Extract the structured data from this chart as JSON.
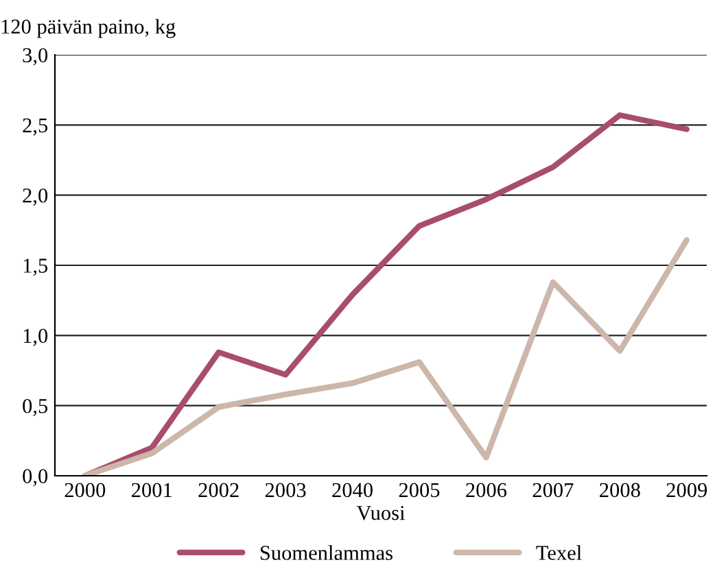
{
  "chart_data": {
    "type": "line",
    "ylabel": "120 päivän paino, kg",
    "xlabel": "Vuosi",
    "categories": [
      "2000",
      "2001",
      "2002",
      "2003",
      "2040",
      "2005",
      "2006",
      "2007",
      "2008",
      "2009"
    ],
    "series": [
      {
        "name": "Suomenlammas",
        "color": "#a84d6a",
        "values": [
          0,
          0.2,
          0.88,
          0.72,
          1.29,
          1.78,
          1.97,
          2.2,
          2.57,
          2.47
        ]
      },
      {
        "name": "Texel",
        "color": "#cdb6aa",
        "values": [
          0,
          0.16,
          0.49,
          0.58,
          0.66,
          0.81,
          0.13,
          1.38,
          0.89,
          1.68
        ]
      }
    ],
    "ylim": [
      0,
      3
    ],
    "yticks": [
      {
        "value": 0,
        "label": "0,0"
      },
      {
        "value": 0.5,
        "label": "0,5"
      },
      {
        "value": 1,
        "label": "1,0"
      },
      {
        "value": 1.5,
        "label": "1,5"
      },
      {
        "value": 2,
        "label": "2,0"
      },
      {
        "value": 2.5,
        "label": "2,5"
      },
      {
        "value": 3,
        "label": "3,0"
      }
    ],
    "grid": "y",
    "legend": "bottom",
    "marker": "none",
    "line_style": "solid"
  }
}
